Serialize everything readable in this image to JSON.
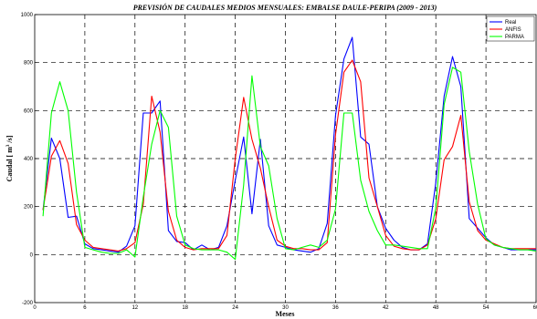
{
  "chart_data": {
    "type": "line",
    "title": "PREVISIÓN DE CAUDALES MEDIOS MENSUALES: EMBALSE DAULE-PERIPA (2009 - 2013)",
    "xlabel": "Meses",
    "ylabel_prefix": "Caudal [ m",
    "ylabel_sup": "3",
    "ylabel_suffix": " /s]",
    "xlim": [
      0,
      60
    ],
    "ylim": [
      -200,
      1000
    ],
    "xticks": [
      0,
      6,
      12,
      18,
      24,
      30,
      36,
      42,
      48,
      54,
      60
    ],
    "yticks": [
      -200,
      0,
      200,
      400,
      600,
      800,
      1000
    ],
    "grid": true,
    "legend_position": "top-right",
    "x": [
      1,
      2,
      3,
      4,
      5,
      6,
      7,
      8,
      9,
      10,
      11,
      12,
      13,
      14,
      15,
      16,
      17,
      18,
      19,
      20,
      21,
      22,
      23,
      24,
      25,
      26,
      27,
      28,
      29,
      30,
      31,
      32,
      33,
      34,
      35,
      36,
      37,
      38,
      39,
      40,
      41,
      42,
      43,
      44,
      45,
      46,
      47,
      48,
      49,
      50,
      51,
      52,
      53,
      54,
      55,
      56,
      57,
      58,
      59,
      60
    ],
    "series": [
      {
        "name": "Real",
        "color": "#0000ff",
        "values": [
          185,
          485,
          400,
          155,
          160,
          45,
          25,
          20,
          15,
          10,
          35,
          120,
          590,
          590,
          640,
          100,
          55,
          50,
          20,
          40,
          20,
          30,
          120,
          310,
          490,
          170,
          480,
          120,
          40,
          30,
          20,
          15,
          10,
          25,
          130,
          580,
          815,
          905,
          490,
          460,
          200,
          110,
          60,
          30,
          20,
          20,
          45,
          300,
          660,
          825,
          700,
          150,
          110,
          70,
          40,
          30,
          20,
          20,
          20,
          20
        ]
      },
      {
        "name": "ANFIS",
        "color": "#ff0000",
        "values": [
          185,
          410,
          475,
          380,
          125,
          60,
          30,
          25,
          20,
          15,
          25,
          50,
          210,
          660,
          510,
          180,
          60,
          30,
          20,
          25,
          25,
          25,
          80,
          400,
          655,
          480,
          360,
          200,
          60,
          35,
          25,
          25,
          20,
          20,
          50,
          500,
          760,
          810,
          720,
          320,
          200,
          80,
          35,
          25,
          20,
          20,
          40,
          150,
          395,
          450,
          580,
          220,
          100,
          60,
          45,
          30,
          25,
          25,
          25,
          25
        ]
      },
      {
        "name": "PARMA",
        "color": "#00ff00",
        "values": [
          160,
          590,
          720,
          600,
          260,
          30,
          20,
          10,
          5,
          5,
          20,
          -10,
          240,
          460,
          600,
          530,
          160,
          40,
          25,
          20,
          20,
          20,
          10,
          -20,
          290,
          745,
          450,
          370,
          150,
          25,
          20,
          30,
          40,
          30,
          60,
          190,
          590,
          590,
          310,
          180,
          100,
          40,
          40,
          35,
          30,
          25,
          25,
          195,
          625,
          780,
          760,
          430,
          210,
          65,
          40,
          30,
          25,
          20,
          20,
          15
        ]
      }
    ]
  }
}
